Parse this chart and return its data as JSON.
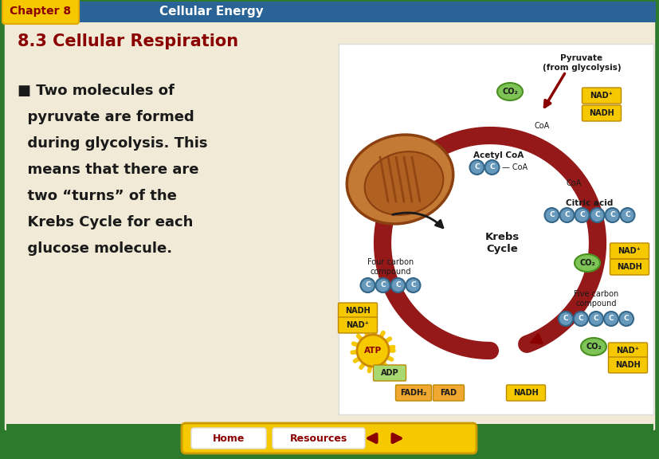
{
  "slide_bg": "#2d7a2d",
  "header_tab_color": "#f5c800",
  "header_tab_text": "Chapter 8",
  "header_tab_text_color": "#8b0000",
  "header_bar_color": "#2a6496",
  "header_bar_text": "Cellular Energy",
  "header_bar_text_color": "#ffffff",
  "content_bg": "#f0ead6",
  "section_title": "8.3 Cellular Respiration",
  "section_title_color": "#8b0000",
  "bullet_text_lines": [
    "■ Two molecules of",
    "  pyruvate are formed",
    "  during glycolysis. This",
    "  means that there are",
    "  two “turns” of the",
    "  Krebs Cycle for each",
    "  glucose molecule."
  ],
  "bullet_text_color": "#1a1a1a",
  "footer_btn_bg": "#f5c800",
  "footer_btn_text_color": "#8b0000",
  "footer_home_text": "Home",
  "footer_resources_text": "Resources",
  "dark_red": "#8b0000",
  "green_circle_color": "#7dc355",
  "carbon_color": "#6699bb",
  "nadh_color": "#f5c800",
  "nad_color": "#f5c800",
  "fadh_color": "#f0a830",
  "atp_color": "#f5c800",
  "adp_color": "#a8d870"
}
